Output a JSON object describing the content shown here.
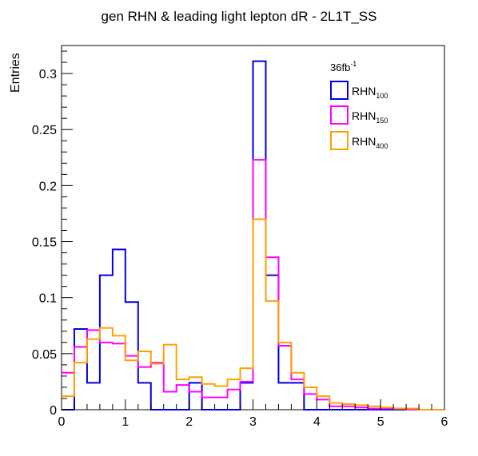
{
  "chart_data": {
    "type": "histogram-step",
    "title": "gen RHN & leading light lepton dR - 2L1T_SS",
    "xlabel": "",
    "ylabel": "Entries",
    "xlim": [
      0,
      6
    ],
    "ylim": [
      0,
      0.325
    ],
    "x_ticks": [
      0,
      1,
      2,
      3,
      4,
      5,
      6
    ],
    "y_ticks": [
      0,
      0.05,
      0.1,
      0.15,
      0.2,
      0.25,
      0.3
    ],
    "x_tick_labels": [
      "0",
      "1",
      "2",
      "3",
      "4",
      "5",
      "6"
    ],
    "y_tick_labels": [
      "0",
      "0.05",
      "0.1",
      "0.15",
      "0.2",
      "0.25",
      "0.3"
    ],
    "grid": false,
    "legend_placement": "top-right",
    "bin_width": 0.2,
    "bin_edges_start": 0,
    "annotation": {
      "base": "36fb",
      "sup": "-1"
    },
    "series": [
      {
        "name": "RHN",
        "sub": "100",
        "color": "#0000e6",
        "values": [
          0,
          0.072,
          0.024,
          0.12,
          0.143,
          0.096,
          0.024,
          0,
          0,
          0,
          0.024,
          0,
          0,
          0,
          0.024,
          0.311,
          0.12,
          0.024,
          0.024,
          0,
          0,
          0,
          0,
          0,
          0,
          0,
          0,
          0,
          0,
          0
        ]
      },
      {
        "name": "RHN",
        "sub": "150",
        "color": "#ff00ff",
        "values": [
          0.033,
          0.056,
          0.071,
          0.06,
          0.059,
          0.048,
          0.038,
          0.042,
          0.016,
          0.022,
          0.016,
          0.011,
          0.011,
          0.018,
          0.025,
          0.223,
          0.136,
          0.057,
          0.027,
          0.014,
          0.009,
          0.003,
          0.003,
          0.002,
          0.001,
          0.001,
          0.001,
          0,
          0,
          0
        ]
      },
      {
        "name": "RHN",
        "sub": "400",
        "color": "#ffa000",
        "values": [
          0.012,
          0.042,
          0.063,
          0.073,
          0.066,
          0.044,
          0.052,
          0.041,
          0.058,
          0.027,
          0.029,
          0.023,
          0.021,
          0.027,
          0.037,
          0.17,
          0.097,
          0.06,
          0.033,
          0.02,
          0.012,
          0.006,
          0.005,
          0.004,
          0.003,
          0.002,
          0.001,
          0.001,
          0,
          0
        ]
      }
    ]
  }
}
